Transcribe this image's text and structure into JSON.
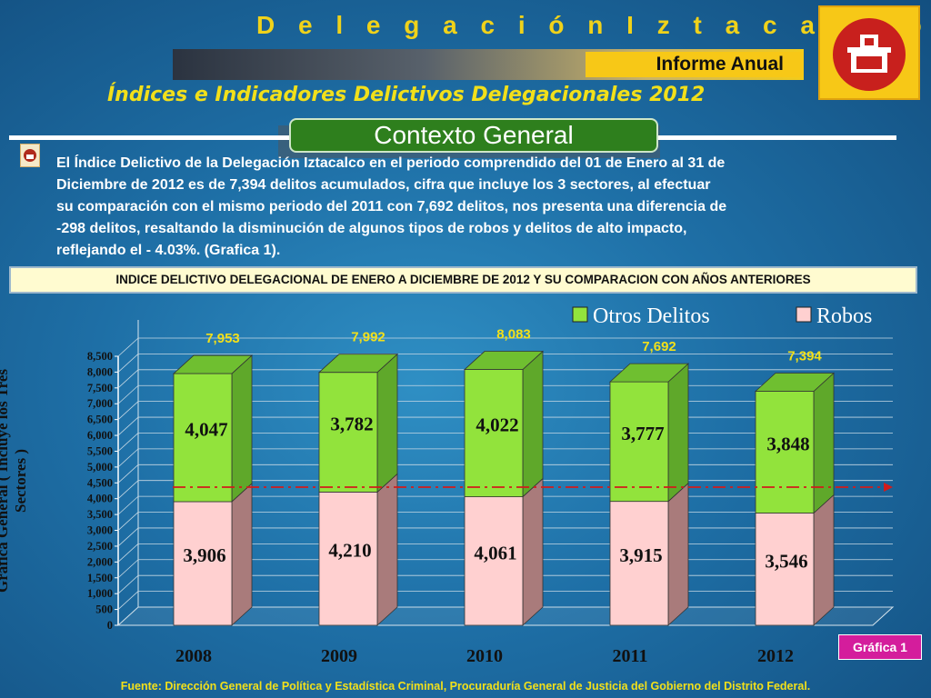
{
  "header": {
    "title": "D e l e g a c i ó n   I z t a c a l c o",
    "report_label": "Informe Anual",
    "subtitle": "Índices e Indicadores Delictivos Delegacionales 2012",
    "section_title": "Contexto General"
  },
  "intro": {
    "lines": [
      "El Índice Delictivo de la Delegación Iztacalco en el periodo comprendido del 01 de Enero al 31 de",
      "Diciembre de 2012 es de 7,394 delitos acumulados, cifra que incluye los 3 sectores, al efectuar",
      "su comparación con el mismo periodo del 2011 con 7,692 delitos, nos presenta una diferencia de",
      "-298 delitos, resaltando la disminución de algunos tipos de robos y delitos de alto impacto,",
      "reflejando el - 4.03%. (Grafica 1)."
    ]
  },
  "chart_header": "INDICE DELICTIVO DELEGACIONAL  DE ENERO A DICIEMBRE DE 2012 Y SU COMPARACION CON AÑOS ANTERIORES",
  "chart_badge": "Gráfica 1",
  "source": "Fuente: Dirección General de Política y Estadística Criminal, Procuraduría General de Justicia del Gobierno del Distrito Federal.",
  "colors": {
    "otros": "#92e33c",
    "otros_side": "#5fa82a",
    "robos": "#ffd0d0",
    "robos_side": "#a97b7b",
    "reference_line": "#d21b1b",
    "total_label": "#f2e01a"
  },
  "chart_data": {
    "type": "bar",
    "stacked": true,
    "categories": [
      "2008",
      "2009",
      "2010",
      "2011",
      "2012"
    ],
    "series": [
      {
        "name": "Robos",
        "values": [
          3906,
          4210,
          4061,
          3915,
          3546
        ]
      },
      {
        "name": "Otros Delitos",
        "values": [
          4047,
          3782,
          4022,
          3777,
          3848
        ]
      }
    ],
    "totals": [
      "7,953",
      "7,992",
      "8,083",
      "7,692",
      "7,394"
    ],
    "robos_labels": [
      "3,906",
      "4,210",
      "4,061",
      "3,915",
      "3,546"
    ],
    "otros_labels": [
      "4,047",
      "3,782",
      "4,022",
      "3,777",
      "3,848"
    ],
    "ylabel": "Grafica General ( Incluye los Tres Sectores )",
    "ylim": [
      0,
      8500
    ],
    "yticks": [
      "0",
      "500",
      "1,000",
      "1,500",
      "2,000",
      "2,500",
      "3,000",
      "3,500",
      "4,000",
      "4,500",
      "5,000",
      "5,500",
      "6,000",
      "6,500",
      "7,000",
      "7,500",
      "8,000",
      "8,500"
    ],
    "legend_position": "top-right",
    "grid": true
  }
}
